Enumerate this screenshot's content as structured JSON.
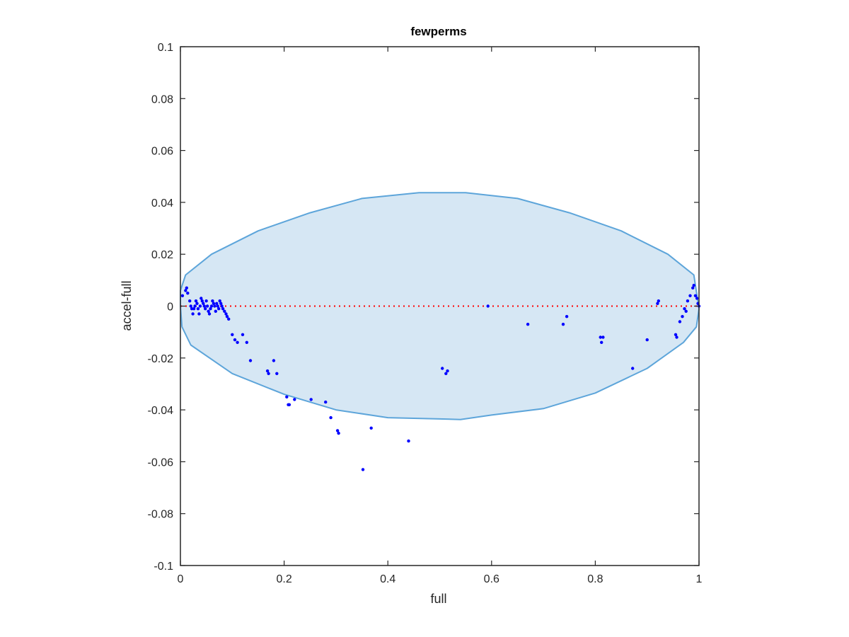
{
  "chart_data": {
    "type": "scatter",
    "title": "fewperms",
    "xlabel": "full",
    "ylabel": "accel-full",
    "xlim": [
      0,
      1
    ],
    "ylim": [
      -0.1,
      0.1
    ],
    "xticks": [
      0,
      0.2,
      0.4,
      0.6,
      0.8,
      1
    ],
    "xtick_labels": [
      "0",
      "0.2",
      "0.4",
      "0.6",
      "0.8",
      "1"
    ],
    "yticks": [
      -0.1,
      -0.08,
      -0.06,
      -0.04,
      -0.02,
      0,
      0.02,
      0.04,
      0.06,
      0.08,
      0.1
    ],
    "ytick_labels": [
      "-0.1",
      "-0.08",
      "-0.06",
      "-0.04",
      "-0.02",
      "0",
      "0.02",
      "0.04",
      "0.06",
      "0.08",
      "0.1"
    ],
    "grid": false,
    "reference_line": {
      "y": 0,
      "style": "dotted",
      "color": "#ff0000"
    },
    "ellipse": {
      "color": "#5DA5DA",
      "fill": "#D6E7F4",
      "outline": [
        [
          0.0,
          0.006
        ],
        [
          0.0,
          0.0
        ],
        [
          0.003,
          -0.008
        ],
        [
          0.02,
          -0.015
        ],
        [
          0.1,
          -0.026
        ],
        [
          0.2,
          -0.034
        ],
        [
          0.3,
          -0.04
        ],
        [
          0.4,
          -0.043
        ],
        [
          0.5,
          -0.0435
        ],
        [
          0.54,
          -0.0437
        ],
        [
          0.6,
          -0.042
        ],
        [
          0.7,
          -0.0395
        ],
        [
          0.8,
          -0.0335
        ],
        [
          0.9,
          -0.024
        ],
        [
          0.97,
          -0.014
        ],
        [
          0.995,
          -0.008
        ],
        [
          1.0,
          -0.001
        ],
        [
          0.99,
          0.012
        ],
        [
          0.94,
          0.02
        ],
        [
          0.85,
          0.029
        ],
        [
          0.75,
          0.036
        ],
        [
          0.65,
          0.0415
        ],
        [
          0.55,
          0.0437
        ],
        [
          0.46,
          0.0437
        ],
        [
          0.35,
          0.0415
        ],
        [
          0.25,
          0.036
        ],
        [
          0.15,
          0.029
        ],
        [
          0.06,
          0.02
        ],
        [
          0.01,
          0.012
        ]
      ]
    },
    "series": [
      {
        "color": "#0000ff",
        "points": [
          [
            0.004,
            0.004
          ],
          [
            0.01,
            0.006
          ],
          [
            0.012,
            0.007
          ],
          [
            0.014,
            0.005
          ],
          [
            0.018,
            0.002
          ],
          [
            0.02,
            0.0
          ],
          [
            0.022,
            -0.001
          ],
          [
            0.024,
            -0.003
          ],
          [
            0.026,
            -0.001
          ],
          [
            0.028,
            0.0
          ],
          [
            0.03,
            0.002
          ],
          [
            0.032,
            0.001
          ],
          [
            0.034,
            -0.001
          ],
          [
            0.036,
            -0.003
          ],
          [
            0.038,
            0.0
          ],
          [
            0.04,
            0.003
          ],
          [
            0.042,
            0.002
          ],
          [
            0.044,
            0.001
          ],
          [
            0.046,
            0.0
          ],
          [
            0.048,
            -0.001
          ],
          [
            0.05,
            0.002
          ],
          [
            0.052,
            0.0
          ],
          [
            0.054,
            -0.002
          ],
          [
            0.056,
            -0.003
          ],
          [
            0.058,
            -0.001
          ],
          [
            0.06,
            0.0
          ],
          [
            0.062,
            0.002
          ],
          [
            0.064,
            0.001
          ],
          [
            0.066,
            0.0
          ],
          [
            0.068,
            -0.002
          ],
          [
            0.07,
            0.001
          ],
          [
            0.072,
            0.0
          ],
          [
            0.074,
            -0.001
          ],
          [
            0.076,
            0.002
          ],
          [
            0.078,
            0.001
          ],
          [
            0.08,
            0.0
          ],
          [
            0.082,
            -0.001
          ],
          [
            0.085,
            -0.002
          ],
          [
            0.088,
            -0.003
          ],
          [
            0.09,
            -0.004
          ],
          [
            0.093,
            -0.005
          ],
          [
            0.1,
            -0.011
          ],
          [
            0.105,
            -0.013
          ],
          [
            0.11,
            -0.014
          ],
          [
            0.12,
            -0.011
          ],
          [
            0.128,
            -0.014
          ],
          [
            0.135,
            -0.021
          ],
          [
            0.168,
            -0.025
          ],
          [
            0.17,
            -0.026
          ],
          [
            0.18,
            -0.021
          ],
          [
            0.186,
            -0.026
          ],
          [
            0.205,
            -0.035
          ],
          [
            0.208,
            -0.038
          ],
          [
            0.21,
            -0.038
          ],
          [
            0.22,
            -0.036
          ],
          [
            0.252,
            -0.036
          ],
          [
            0.28,
            -0.037
          ],
          [
            0.29,
            -0.043
          ],
          [
            0.303,
            -0.048
          ],
          [
            0.305,
            -0.049
          ],
          [
            0.352,
            -0.063
          ],
          [
            0.368,
            -0.047
          ],
          [
            0.44,
            -0.052
          ],
          [
            0.505,
            -0.024
          ],
          [
            0.512,
            -0.026
          ],
          [
            0.515,
            -0.025
          ],
          [
            0.593,
            0.0
          ],
          [
            0.67,
            -0.007
          ],
          [
            0.738,
            -0.007
          ],
          [
            0.745,
            -0.004
          ],
          [
            0.81,
            -0.012
          ],
          [
            0.812,
            -0.014
          ],
          [
            0.815,
            -0.012
          ],
          [
            0.872,
            -0.024
          ],
          [
            0.9,
            -0.013
          ],
          [
            0.92,
            0.001
          ],
          [
            0.922,
            0.002
          ],
          [
            0.955,
            -0.011
          ],
          [
            0.957,
            -0.012
          ],
          [
            0.963,
            -0.006
          ],
          [
            0.968,
            -0.004
          ],
          [
            0.972,
            -0.001
          ],
          [
            0.975,
            -0.002
          ],
          [
            0.978,
            0.002
          ],
          [
            0.983,
            0.004
          ],
          [
            0.988,
            0.007
          ],
          [
            0.99,
            0.008
          ],
          [
            0.993,
            0.004
          ],
          [
            0.996,
            0.003
          ],
          [
            0.998,
            0.001
          ],
          [
            1.0,
            0.0
          ]
        ]
      }
    ]
  }
}
